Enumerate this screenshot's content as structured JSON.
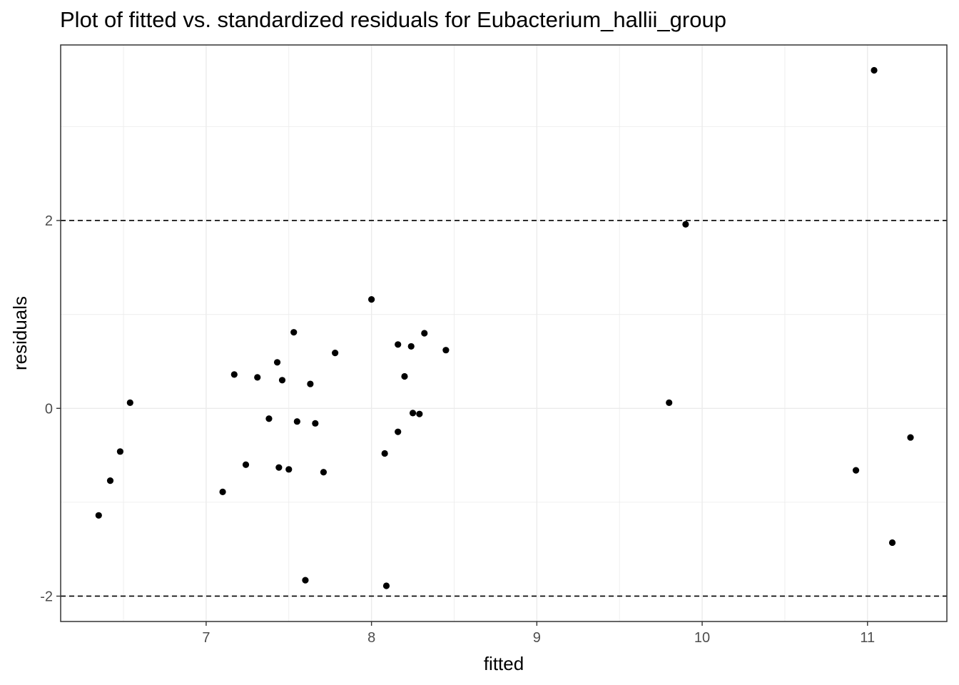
{
  "chart_data": {
    "type": "scatter",
    "title": "Plot of fitted vs. standardized residuals for Eubacterium_hallii_group",
    "xlabel": "fitted",
    "ylabel": "residuals",
    "xlim": [
      6.12,
      11.48
    ],
    "ylim": [
      -2.27,
      3.87
    ],
    "x_ticks": [
      7,
      8,
      9,
      10,
      11
    ],
    "x_tick_labels": [
      "7",
      "8",
      "9",
      "10",
      "11"
    ],
    "y_ticks": [
      -2,
      0,
      2
    ],
    "y_tick_labels": [
      "-2",
      "0",
      "2"
    ],
    "minor_x": [
      6.5,
      7.5,
      8.5,
      9.5,
      10.5
    ],
    "minor_y": [
      -1,
      1,
      3
    ],
    "reference_lines": [
      -2,
      2
    ],
    "grid": true,
    "legend": "none",
    "colors": {
      "point": "#000000",
      "grid": "#ebebeb",
      "panel_border": "#333333",
      "ref_line": "#000000"
    },
    "points": [
      {
        "x": 6.35,
        "y": -1.14
      },
      {
        "x": 6.42,
        "y": -0.77
      },
      {
        "x": 6.48,
        "y": -0.46
      },
      {
        "x": 6.54,
        "y": 0.06
      },
      {
        "x": 7.1,
        "y": -0.89
      },
      {
        "x": 7.17,
        "y": 0.36
      },
      {
        "x": 7.24,
        "y": -0.6
      },
      {
        "x": 7.31,
        "y": 0.33
      },
      {
        "x": 7.38,
        "y": -0.11
      },
      {
        "x": 7.43,
        "y": 0.49
      },
      {
        "x": 7.44,
        "y": -0.63
      },
      {
        "x": 7.46,
        "y": 0.3
      },
      {
        "x": 7.5,
        "y": -0.65
      },
      {
        "x": 7.53,
        "y": 0.81
      },
      {
        "x": 7.55,
        "y": -0.14
      },
      {
        "x": 7.6,
        "y": -1.83
      },
      {
        "x": 7.63,
        "y": 0.26
      },
      {
        "x": 7.66,
        "y": -0.16
      },
      {
        "x": 7.71,
        "y": -0.68
      },
      {
        "x": 7.78,
        "y": 0.59
      },
      {
        "x": 8.0,
        "y": 1.16
      },
      {
        "x": 8.08,
        "y": -0.48
      },
      {
        "x": 8.09,
        "y": -1.89
      },
      {
        "x": 8.16,
        "y": -0.25
      },
      {
        "x": 8.16,
        "y": 0.68
      },
      {
        "x": 8.2,
        "y": 0.34
      },
      {
        "x": 8.24,
        "y": 0.66
      },
      {
        "x": 8.25,
        "y": -0.05
      },
      {
        "x": 8.29,
        "y": -0.06
      },
      {
        "x": 8.32,
        "y": 0.8
      },
      {
        "x": 8.45,
        "y": 0.62
      },
      {
        "x": 9.8,
        "y": 0.06
      },
      {
        "x": 9.9,
        "y": 1.96
      },
      {
        "x": 10.93,
        "y": -0.66
      },
      {
        "x": 11.04,
        "y": 3.6
      },
      {
        "x": 11.15,
        "y": -1.43
      },
      {
        "x": 11.26,
        "y": -0.31
      }
    ]
  }
}
